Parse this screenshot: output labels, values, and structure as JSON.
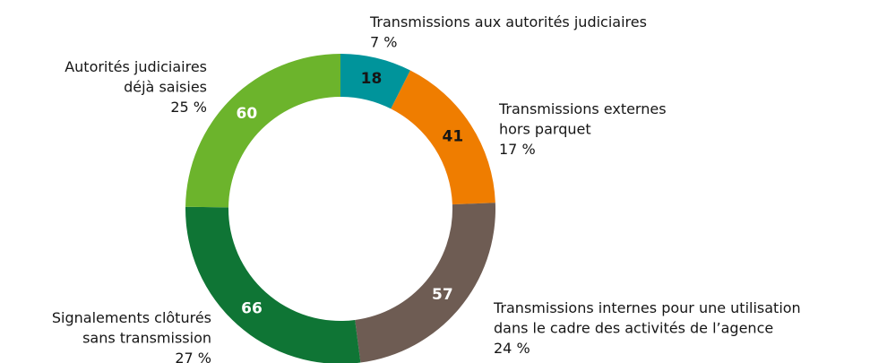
{
  "chart_data": {
    "type": "donut",
    "categories": [
      [
        "Transmissions aux autorités judiciaires"
      ],
      [
        "Transmissions externes",
        "hors parquet"
      ],
      [
        "Transmissions internes pour une utilisation",
        "dans le cadre des activités de l’agence"
      ],
      [
        "Signalements clôturés",
        "sans transmission"
      ],
      [
        "Autorités judiciaires",
        "déjà saisies"
      ]
    ],
    "values": [
      18,
      41,
      57,
      66,
      60
    ],
    "share_labels": [
      "7 %",
      "17 %",
      "24 %",
      "27 %",
      "25 %"
    ],
    "colors": [
      "#00949b",
      "#ef7d00",
      "#6e5c53",
      "#0f7535",
      "#6cb42c"
    ],
    "value_label_colors": [
      "#161616",
      "#161616",
      "#ffffff",
      "#ffffff",
      "#ffffff"
    ]
  }
}
